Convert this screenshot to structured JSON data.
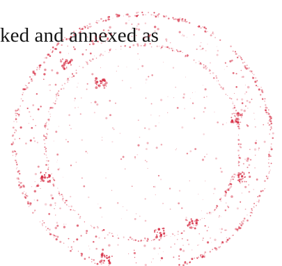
{
  "document": {
    "visible_text": "ked and annexed as"
  },
  "stamp": {
    "kind": "faded circular seal",
    "color": "#d4243c"
  }
}
